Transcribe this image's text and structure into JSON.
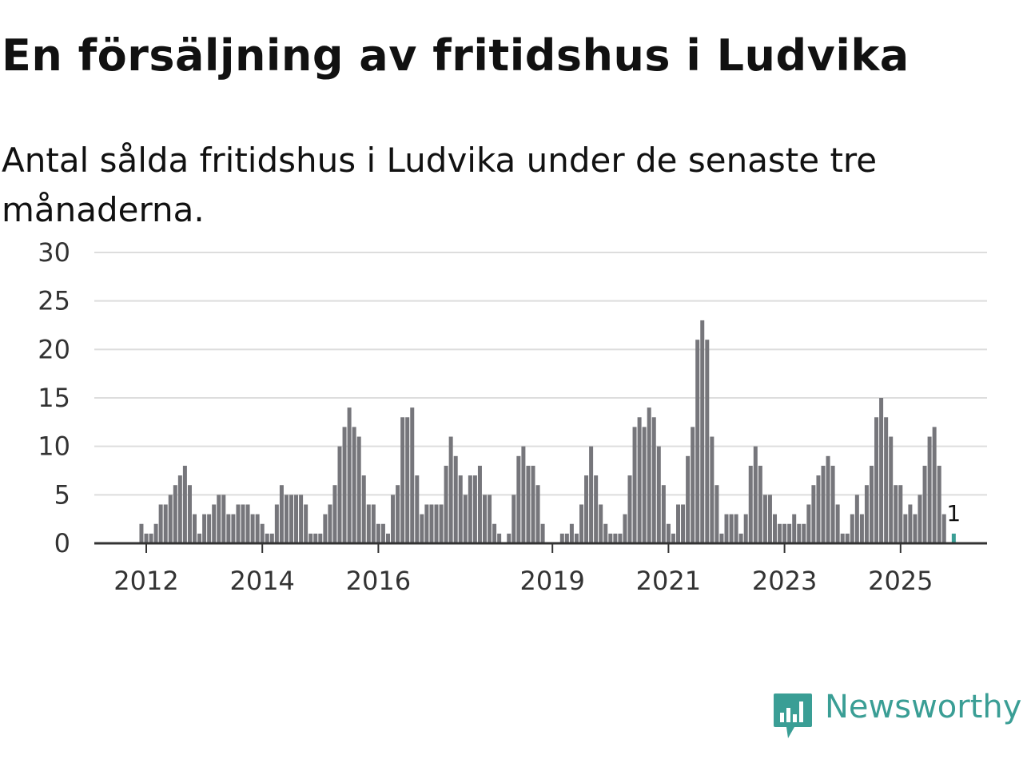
{
  "header": {
    "title": "En försäljning av fritidshus i Ludvika",
    "subtitle": "Antal sålda fritidshus i Ludvika under de senaste tre månaderna."
  },
  "logo": {
    "text": "Newsworthy",
    "icon": "newsworthy-chart-icon",
    "color": "#3a9e95"
  },
  "chart_data": {
    "type": "bar",
    "title": "En försäljning av fritidshus i Ludvika",
    "subtitle": "Antal sålda fritidshus i Ludvika under de senaste tre månaderna.",
    "xlabel": "",
    "ylabel": "",
    "ylim": [
      0,
      30
    ],
    "yticks": [
      0,
      5,
      10,
      15,
      20,
      25,
      30
    ],
    "grid": true,
    "legend": "none",
    "colors": {
      "bar": "#76767b",
      "highlight": "#3a9e95",
      "grid": "#dddddd",
      "axis": "#333333"
    },
    "xticks": [
      "2012",
      "2014",
      "2016",
      "2019",
      "2021",
      "2023",
      "2025"
    ],
    "xtick_dates": [
      "2012-01",
      "2014-01",
      "2016-01",
      "2019-01",
      "2021-01",
      "2023-01",
      "2025-01"
    ],
    "start": "2011-03",
    "highlight_label": "1",
    "values": [
      0,
      0,
      0,
      0,
      0,
      0,
      0,
      0,
      0,
      2,
      1,
      1,
      2,
      4,
      4,
      5,
      6,
      7,
      8,
      6,
      3,
      1,
      3,
      3,
      4,
      5,
      5,
      3,
      3,
      4,
      4,
      4,
      3,
      3,
      2,
      1,
      1,
      4,
      6,
      5,
      5,
      5,
      5,
      4,
      1,
      1,
      1,
      3,
      4,
      6,
      10,
      12,
      14,
      12,
      11,
      7,
      4,
      4,
      2,
      2,
      1,
      5,
      6,
      13,
      13,
      14,
      7,
      3,
      4,
      4,
      4,
      4,
      8,
      11,
      9,
      7,
      5,
      7,
      7,
      8,
      5,
      5,
      2,
      1,
      0,
      1,
      5,
      9,
      10,
      8,
      8,
      6,
      2,
      0,
      0,
      0,
      1,
      1,
      2,
      1,
      4,
      7,
      10,
      7,
      4,
      2,
      1,
      1,
      1,
      3,
      7,
      12,
      13,
      12,
      14,
      13,
      10,
      6,
      2,
      1,
      4,
      4,
      9,
      12,
      21,
      23,
      21,
      11,
      6,
      1,
      3,
      3,
      3,
      1,
      3,
      8,
      10,
      8,
      5,
      5,
      3,
      2,
      2,
      2,
      3,
      2,
      2,
      4,
      6,
      7,
      8,
      9,
      8,
      4,
      1,
      1,
      3,
      5,
      3,
      6,
      8,
      13,
      15,
      13,
      11,
      6,
      6,
      3,
      4,
      3,
      5,
      8,
      11,
      12,
      8,
      3,
      0,
      1
    ]
  }
}
